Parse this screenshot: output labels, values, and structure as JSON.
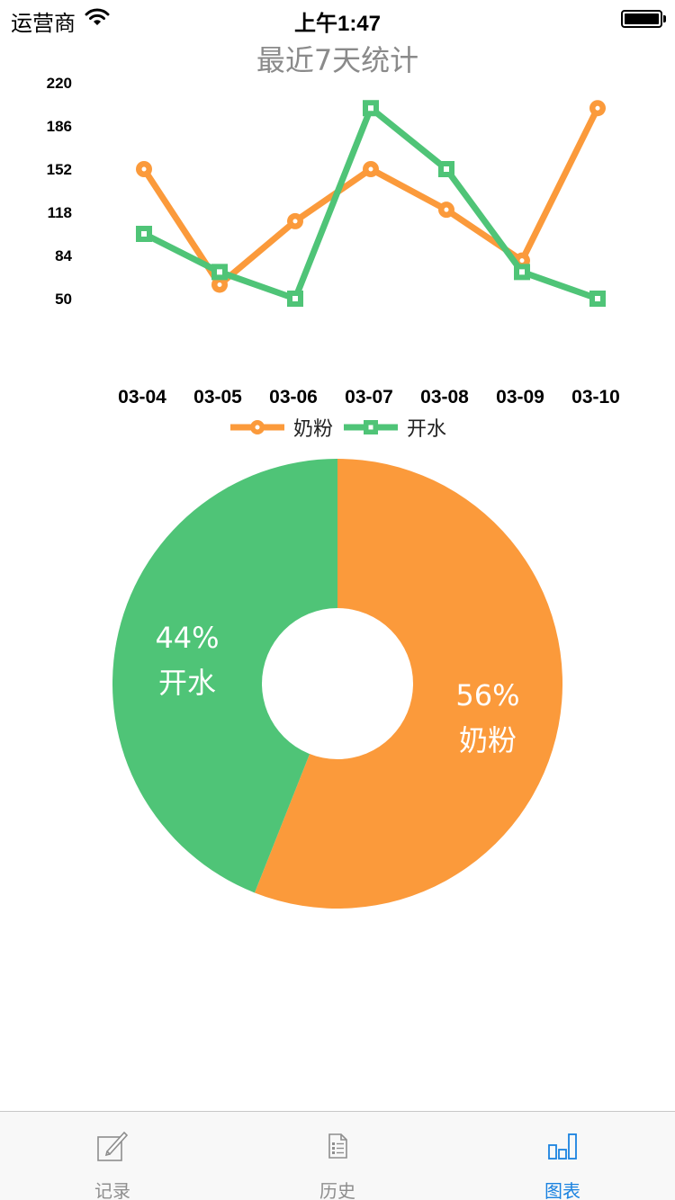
{
  "status_bar": {
    "carrier": "运营商",
    "time": "上午1:47"
  },
  "title": "最近7天统计",
  "line_chart": {
    "type": "line",
    "categories": [
      "03-04",
      "03-05",
      "03-06",
      "03-07",
      "03-08",
      "03-09",
      "03-10"
    ],
    "y_ticks": [
      "220",
      "186",
      "152",
      "118",
      "84",
      "50"
    ],
    "ylim": [
      50,
      220
    ],
    "series": [
      {
        "name": "奶粉",
        "color": "#fb9a3b",
        "marker": "circle",
        "values": [
          152,
          61,
          111,
          152,
          120,
          80,
          200
        ]
      },
      {
        "name": "开水",
        "color": "#4fc477",
        "marker": "square",
        "values": [
          101,
          71,
          50,
          200,
          152,
          71,
          50
        ]
      }
    ]
  },
  "pie_chart": {
    "type": "pie",
    "slices": [
      {
        "name": "奶粉",
        "percent_label": "56%",
        "value": 56,
        "color": "#fb9a3b"
      },
      {
        "name": "开水",
        "percent_label": "44%",
        "value": 44,
        "color": "#4fc477"
      }
    ]
  },
  "chart_data": [
    {
      "type": "line",
      "title": "最近7天统计",
      "categories": [
        "03-04",
        "03-05",
        "03-06",
        "03-07",
        "03-08",
        "03-09",
        "03-10"
      ],
      "ylim": [
        50,
        220
      ],
      "series": [
        {
          "name": "奶粉",
          "values": [
            152,
            61,
            111,
            152,
            120,
            80,
            200
          ]
        },
        {
          "name": "开水",
          "values": [
            101,
            71,
            50,
            200,
            152,
            71,
            50
          ]
        }
      ],
      "legend": "bottom-center"
    },
    {
      "type": "pie",
      "categories": [
        "奶粉",
        "开水"
      ],
      "values": [
        56,
        44
      ]
    }
  ],
  "tab_bar": {
    "tabs": [
      {
        "label": "记录",
        "icon": "compose-icon",
        "active": false
      },
      {
        "label": "历史",
        "icon": "document-icon",
        "active": false
      },
      {
        "label": "图表",
        "icon": "bar-chart-icon",
        "active": true
      }
    ]
  }
}
